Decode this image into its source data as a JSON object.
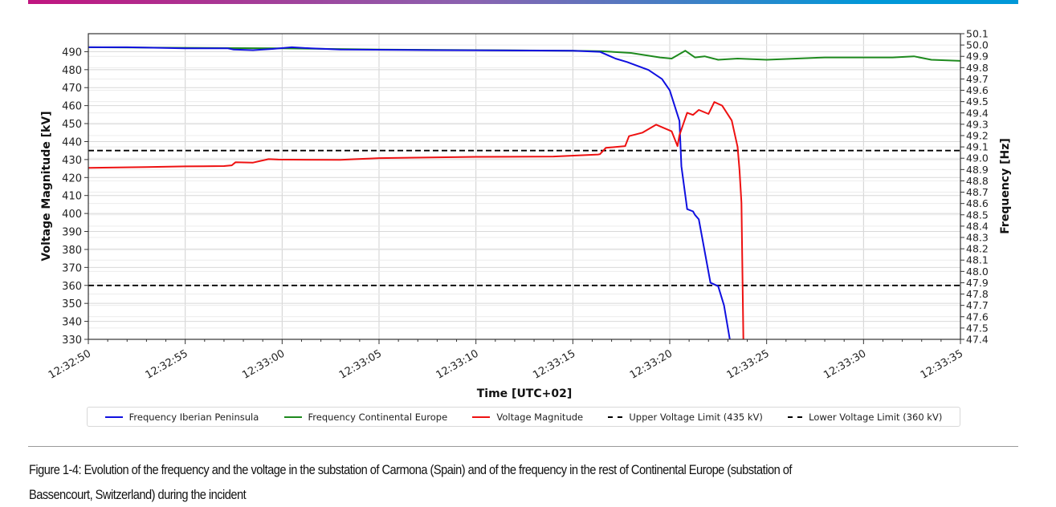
{
  "chart_data": {
    "type": "line",
    "xlabel": "Time [UTC+02]",
    "ylabel_left": "Voltage Magnitude [kV]",
    "ylabel_right": "Frequency [Hz]",
    "x_unit": "seconds after 12:32:50",
    "xlim": [
      0,
      45
    ],
    "x_ticks": [
      0,
      5,
      10,
      15,
      20,
      25,
      30,
      35,
      40,
      45
    ],
    "x_tick_labels": [
      "12:32:50",
      "12:32:55",
      "12:33:00",
      "12:33:05",
      "12:33:10",
      "12:33:15",
      "12:33:20",
      "12:33:25",
      "12:33:30",
      "12:33:35"
    ],
    "ylim_left": [
      330,
      500
    ],
    "y_ticks_left": [
      "330",
      "340",
      "350",
      "360",
      "370",
      "380",
      "390",
      "400",
      "410",
      "420",
      "430",
      "440",
      "450",
      "460",
      "470",
      "480",
      "490"
    ],
    "ylim_right": [
      47.4,
      50.1
    ],
    "y_ticks_right": [
      "47.4",
      "47.5",
      "47.6",
      "47.7",
      "47.8",
      "47.9",
      "48.0",
      "48.1",
      "48.2",
      "48.3",
      "48.4",
      "48.5",
      "48.6",
      "48.7",
      "48.8",
      "48.9",
      "49.0",
      "49.1",
      "49.2",
      "49.3",
      "49.4",
      "49.5",
      "49.6",
      "49.7",
      "49.8",
      "49.9",
      "50.0",
      "50.1"
    ],
    "grid": true,
    "legend_placement": "bottom",
    "series": [
      {
        "name": "Frequency Iberian Peninsula",
        "axis": "right",
        "color": "#1010e0",
        "style": "solid",
        "x": [
          0,
          2,
          5,
          7.2,
          7.5,
          8.5,
          9.5,
          10.5,
          11.5,
          13,
          18,
          25,
          26.4,
          27.2,
          27.8,
          28.9,
          29.6,
          30.0,
          30.5,
          30.6,
          30.9,
          31.2,
          31.3,
          31.5,
          32.1,
          32.5,
          32.8,
          33.1
        ],
        "y": [
          49.98,
          49.98,
          49.97,
          49.97,
          49.96,
          49.955,
          49.965,
          49.98,
          49.97,
          49.96,
          49.955,
          49.95,
          49.94,
          49.88,
          49.85,
          49.78,
          49.7,
          49.6,
          49.33,
          48.93,
          48.55,
          48.53,
          48.5,
          48.46,
          47.9,
          47.87,
          47.7,
          47.4
        ]
      },
      {
        "name": "Frequency Continental Europe",
        "axis": "right",
        "color": "#1e8a1e",
        "style": "solid",
        "x": [
          0,
          5,
          10,
          15,
          20,
          25,
          26.5,
          28,
          29.5,
          30.1,
          30.8,
          31.3,
          31.8,
          32.5,
          33.5,
          35,
          38,
          41.5,
          42.6,
          43.5,
          45
        ],
        "y": [
          49.98,
          49.975,
          49.97,
          49.96,
          49.955,
          49.95,
          49.945,
          49.93,
          49.89,
          49.88,
          49.95,
          49.89,
          49.9,
          49.87,
          49.88,
          49.87,
          49.89,
          49.89,
          49.9,
          49.87,
          49.86
        ]
      },
      {
        "name": "Voltage Magnitude",
        "axis": "left",
        "color": "#ee1111",
        "style": "solid",
        "x": [
          0,
          3,
          5,
          7,
          7.4,
          7.6,
          8.5,
          9.3,
          9.8,
          13,
          15,
          20,
          24,
          26.3,
          26.4,
          26.7,
          27.7,
          27.9,
          28.6,
          29.3,
          30.1,
          30.4,
          30.5,
          30.9,
          31.2,
          31.5,
          32.0,
          32.3,
          32.7,
          33.2,
          33.5,
          33.6,
          33.7,
          33.8
        ],
        "y": [
          425.4,
          425.8,
          426.2,
          426.4,
          426.8,
          428.5,
          428.3,
          430.2,
          430,
          429.8,
          430.8,
          431.5,
          431.7,
          432.8,
          433,
          436.5,
          437.5,
          443,
          445,
          449.4,
          445.7,
          437.5,
          443.6,
          456,
          454.8,
          457.6,
          455.4,
          462,
          460,
          451.7,
          437,
          424,
          406,
          330
        ]
      },
      {
        "name": "Upper Voltage Limit (435 kV)",
        "axis": "left",
        "color": "#000000",
        "style": "dashed",
        "x": [
          0,
          45
        ],
        "y": [
          435,
          435
        ]
      },
      {
        "name": "Lower Voltage Limit (360 kV)",
        "axis": "left",
        "color": "#000000",
        "style": "dashed",
        "x": [
          0,
          45
        ],
        "y": [
          360,
          360
        ]
      }
    ]
  },
  "caption": {
    "line1": "Figure 1-4: Evolution of the frequency and the voltage in the substation of Carmona (Spain) and of the frequency in the rest of Continental Europe (substation of",
    "line2": "Bassencourt, Switzerland) during the incident"
  }
}
